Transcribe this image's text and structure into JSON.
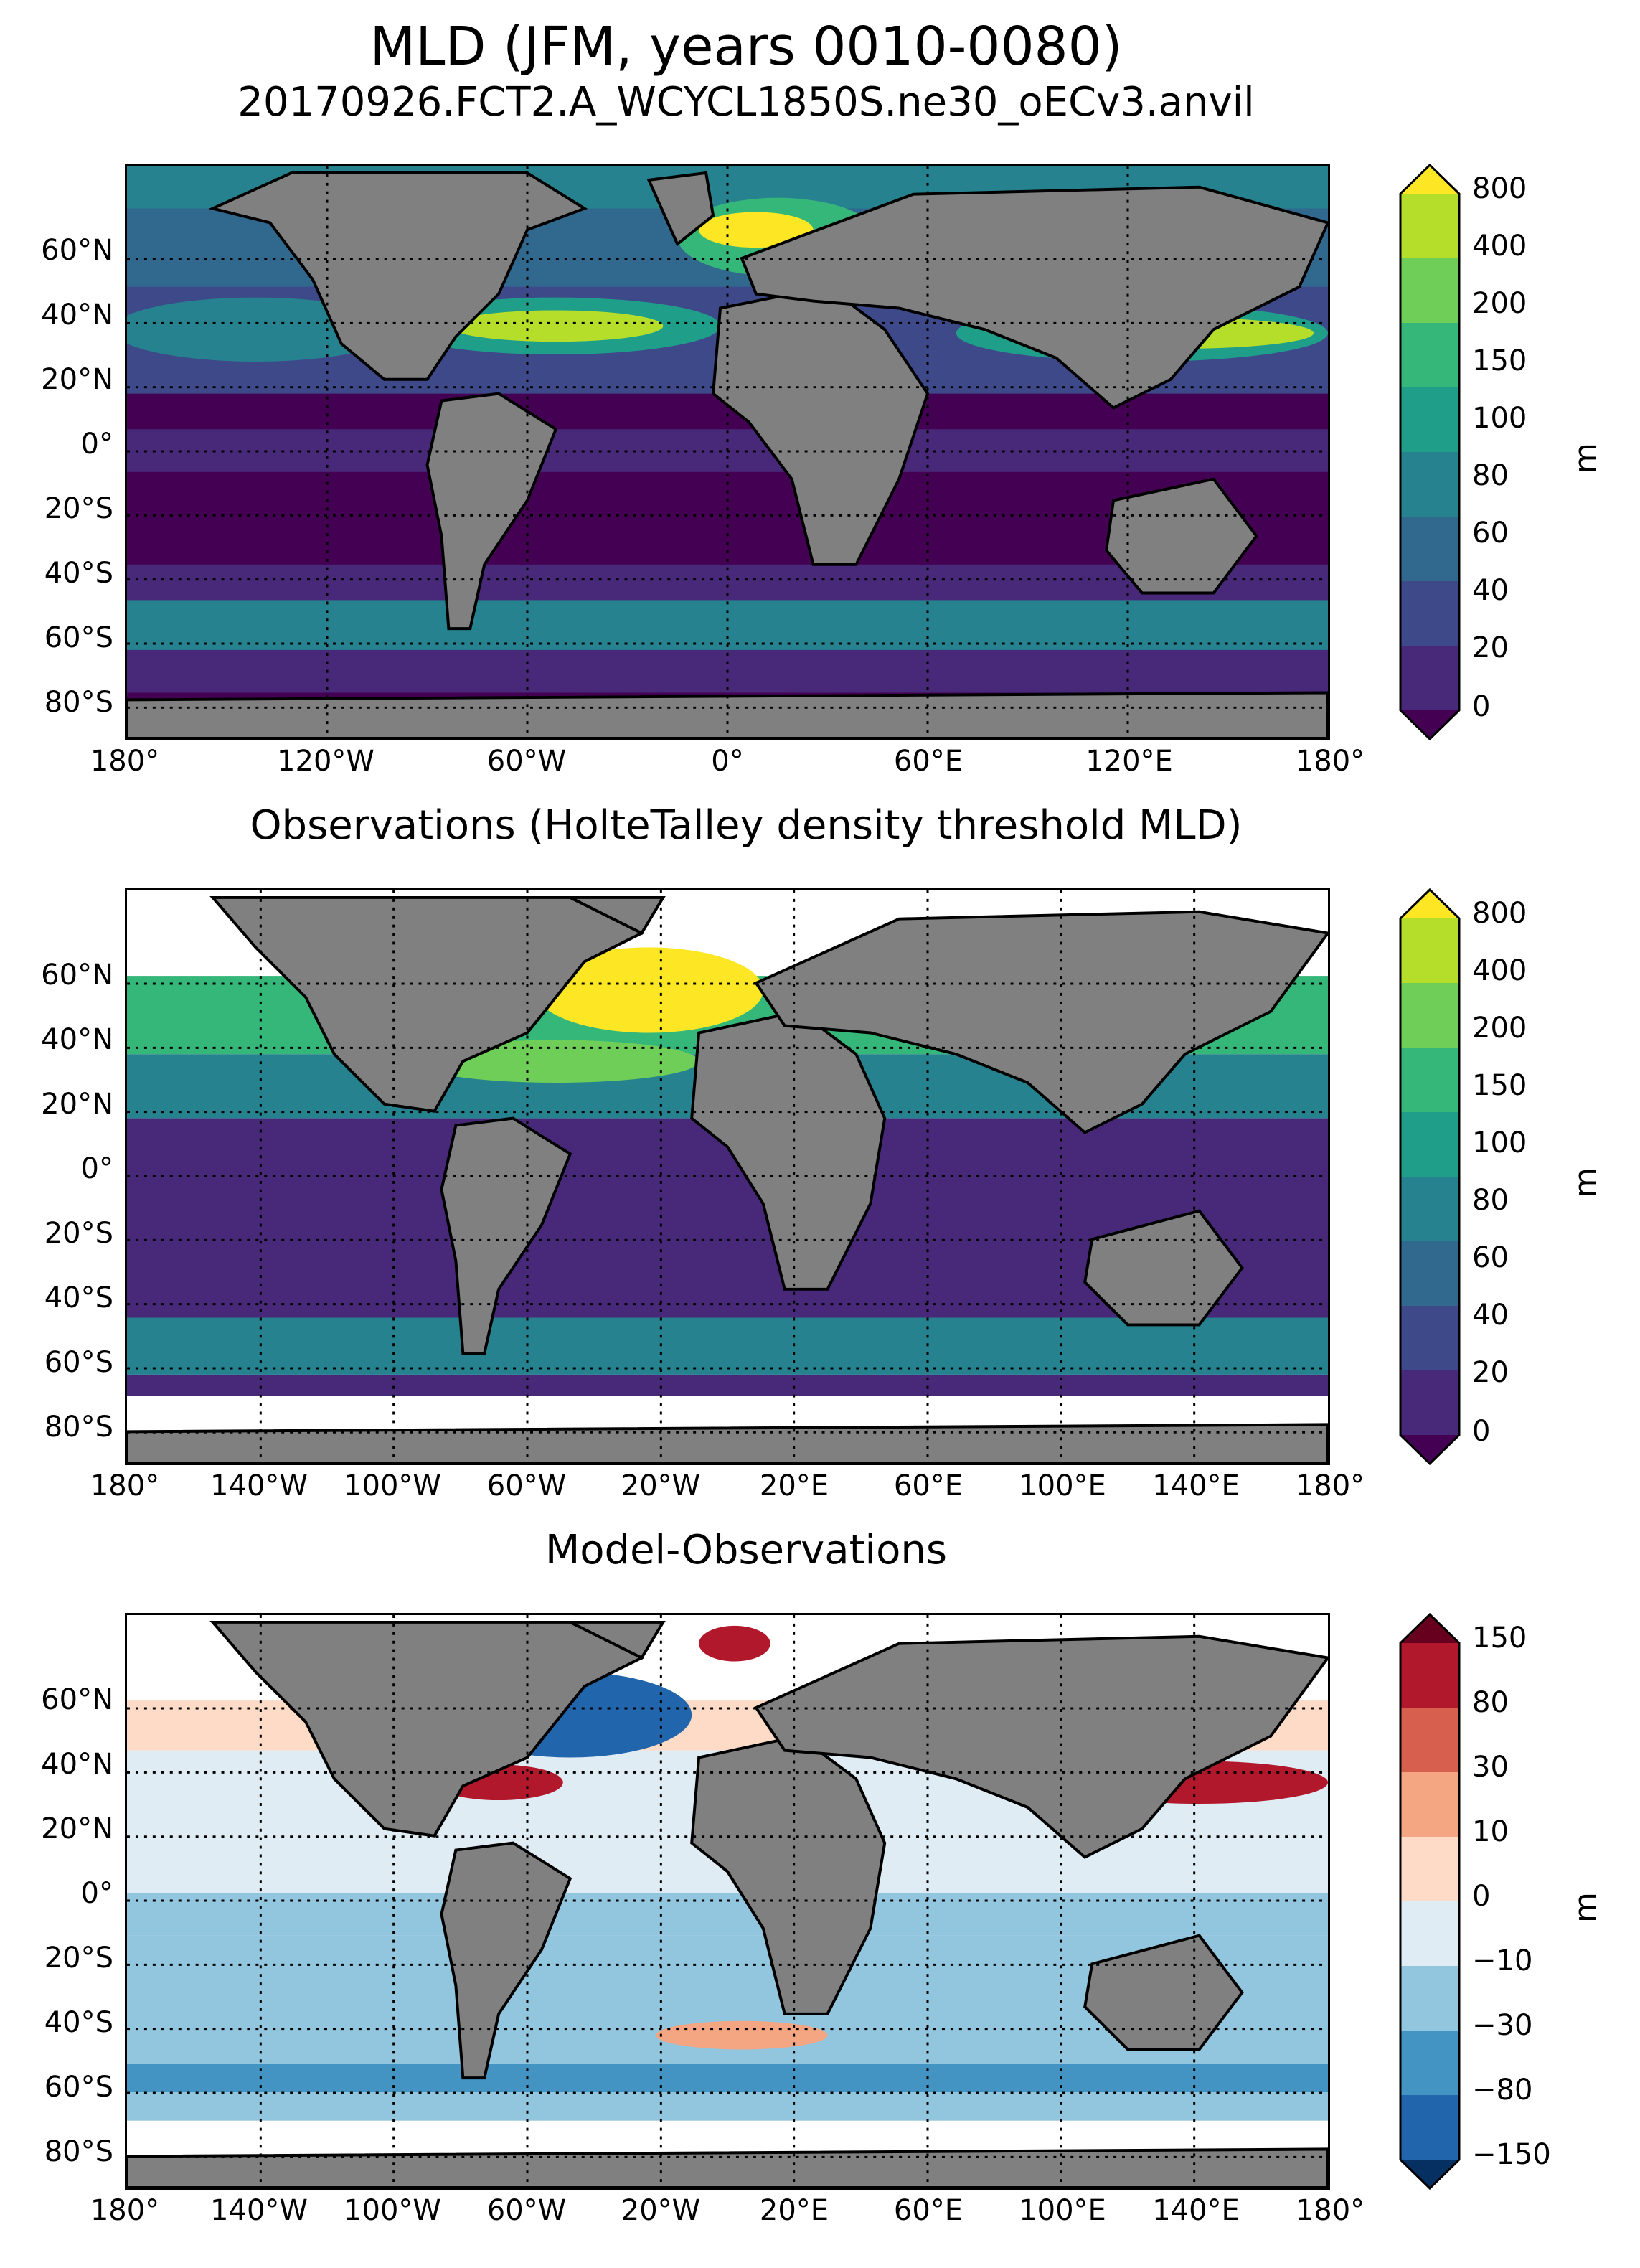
{
  "title": "MLD (JFM, years 0010-0080)",
  "subtitle": "20170926.FCT2.A_WCYCL1850S.ne30_oECv3.anvil",
  "panels": [
    {
      "title": "",
      "lat_labels": [
        "60°N",
        "40°N",
        "20°N",
        "0°",
        "20°S",
        "40°S",
        "60°S",
        "80°S"
      ],
      "lon_labels": [
        "180°",
        "120°W",
        "60°W",
        "0°",
        "60°E",
        "120°E",
        "180°"
      ],
      "colorbar": {
        "colormap": "viridis",
        "ticks": [
          "800",
          "400",
          "200",
          "150",
          "100",
          "80",
          "60",
          "40",
          "20",
          "0"
        ],
        "colors": [
          "#fde725",
          "#b5de2b",
          "#6ece58",
          "#35b779",
          "#1f9e89",
          "#26828e",
          "#31688e",
          "#3e4989",
          "#482878",
          "#440154"
        ],
        "unit": "m"
      }
    },
    {
      "title": "Observations (HolteTalley density threshold MLD)",
      "lat_labels": [
        "60°N",
        "40°N",
        "20°N",
        "0°",
        "20°S",
        "40°S",
        "60°S",
        "80°S"
      ],
      "lon_labels": [
        "180°",
        "140°W",
        "100°W",
        "60°W",
        "20°W",
        "20°E",
        "60°E",
        "100°E",
        "140°E",
        "180°"
      ],
      "colorbar": {
        "colormap": "viridis",
        "ticks": [
          "800",
          "400",
          "200",
          "150",
          "100",
          "80",
          "60",
          "40",
          "20",
          "0"
        ],
        "colors": [
          "#fde725",
          "#b5de2b",
          "#6ece58",
          "#35b779",
          "#1f9e89",
          "#26828e",
          "#31688e",
          "#3e4989",
          "#482878",
          "#440154"
        ],
        "unit": "m"
      }
    },
    {
      "title": "Model-Observations",
      "lat_labels": [
        "60°N",
        "40°N",
        "20°N",
        "0°",
        "20°S",
        "40°S",
        "60°S",
        "80°S"
      ],
      "lon_labels": [
        "180°",
        "140°W",
        "100°W",
        "60°W",
        "20°W",
        "20°E",
        "60°E",
        "100°E",
        "140°E",
        "180°"
      ],
      "colorbar": {
        "colormap": "RdBu_r",
        "ticks": [
          "150",
          "80",
          "30",
          "10",
          "0",
          "−10",
          "−30",
          "−80",
          "−150"
        ],
        "colors": [
          "#67001f",
          "#b2182b",
          "#d6604d",
          "#f4a582",
          "#fddbc7",
          "#e0ecf4",
          "#92c5de",
          "#4393c3",
          "#2166ac",
          "#053061"
        ],
        "unit": "m"
      }
    }
  ],
  "land_color": "#808080",
  "missing_color": "#ffffff"
}
